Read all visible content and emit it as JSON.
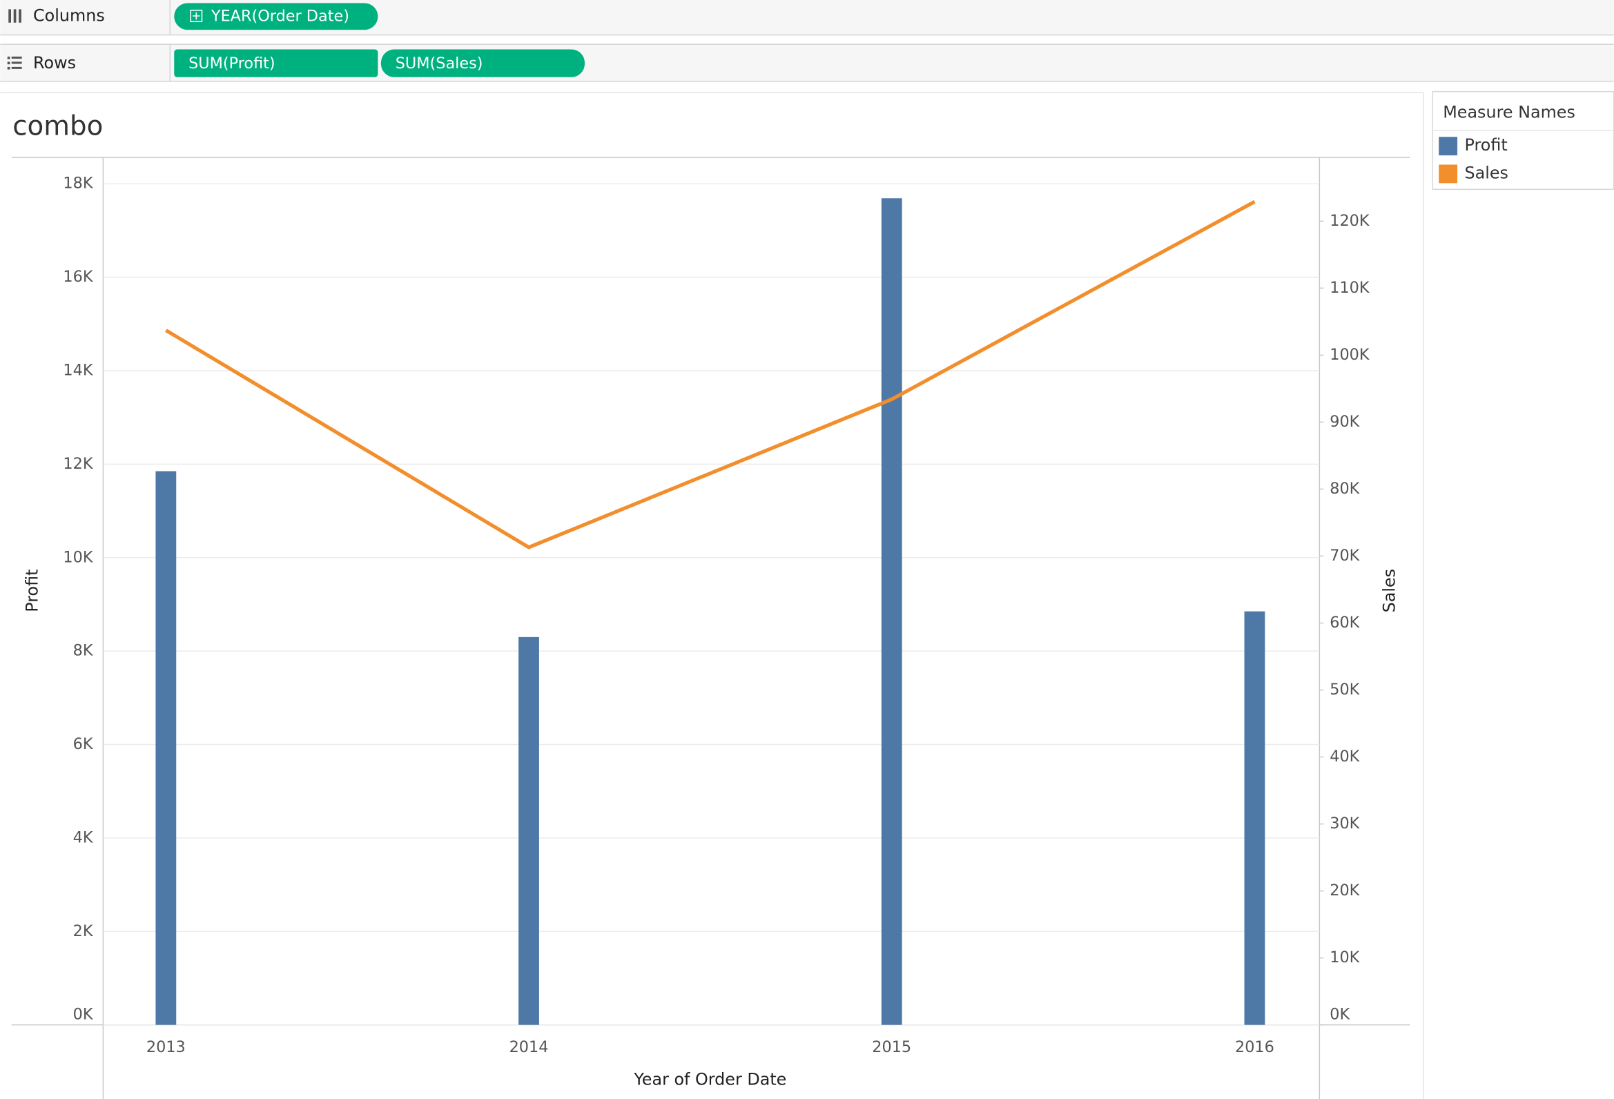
{
  "shelves": {
    "columns": {
      "label": "Columns",
      "pills": [
        "YEAR(Order Date)"
      ]
    },
    "rows": {
      "label": "Rows",
      "pills": [
        "SUM(Profit)",
        "SUM(Sales)"
      ]
    }
  },
  "chart_data": {
    "type": "combo",
    "title": "combo",
    "x_label": "Year of Order Date",
    "y_label": "Profit",
    "y2_label": "Sales",
    "legend_title": "Measure Names",
    "categories": [
      "2013",
      "2014",
      "2015",
      "2016"
    ],
    "series": [
      {
        "name": "Profit",
        "type": "bar",
        "color": "#4e79a7",
        "values": [
          11850,
          8300,
          17690,
          8850
        ]
      },
      {
        "name": "Sales",
        "type": "line",
        "axis": "y2",
        "color": "#f28e2b",
        "values": [
          103700,
          71300,
          93400,
          122900
        ]
      }
    ],
    "ylim": [
      0,
      18520
    ],
    "yticks": [
      {
        "value": 0,
        "label": "0K"
      },
      {
        "value": 2000,
        "label": "2K"
      },
      {
        "value": 4000,
        "label": "4K"
      },
      {
        "value": 6000,
        "label": "6K"
      },
      {
        "value": 8000,
        "label": "8K"
      },
      {
        "value": 10000,
        "label": "10K"
      },
      {
        "value": 12000,
        "label": "12K"
      },
      {
        "value": 14000,
        "label": "14K"
      },
      {
        "value": 16000,
        "label": "16K"
      },
      {
        "value": 18000,
        "label": "18K"
      }
    ],
    "y2lim": [
      0,
      129200
    ],
    "y2ticks": [
      {
        "value": 0,
        "label": "0K"
      },
      {
        "value": 10000,
        "label": "10K"
      },
      {
        "value": 20000,
        "label": "20K"
      },
      {
        "value": 30000,
        "label": "30K"
      },
      {
        "value": 40000,
        "label": "40K"
      },
      {
        "value": 50000,
        "label": "50K"
      },
      {
        "value": 60000,
        "label": "60K"
      },
      {
        "value": 70000,
        "label": "70K"
      },
      {
        "value": 80000,
        "label": "80K"
      },
      {
        "value": 90000,
        "label": "90K"
      },
      {
        "value": 100000,
        "label": "100K"
      },
      {
        "value": 110000,
        "label": "110K"
      },
      {
        "value": 120000,
        "label": "120K"
      }
    ],
    "grid": true
  }
}
